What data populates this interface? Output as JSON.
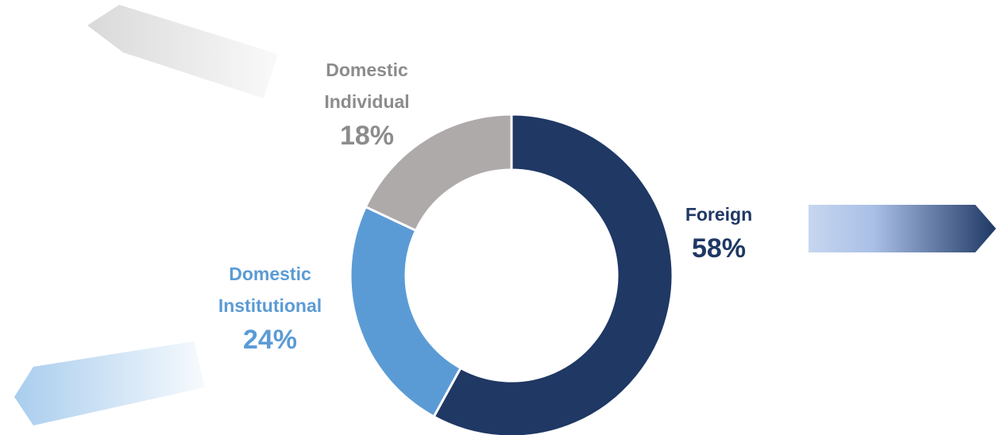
{
  "chart_data": {
    "type": "donut",
    "categories": [
      "Foreign",
      "Domestic Institutional",
      "Domestic Individual"
    ],
    "values": [
      58,
      24,
      18
    ],
    "value_labels": [
      "58%",
      "24%",
      "18%"
    ],
    "colors": [
      "#1f3864",
      "#5b9bd5",
      "#aeaaaa"
    ]
  }
}
